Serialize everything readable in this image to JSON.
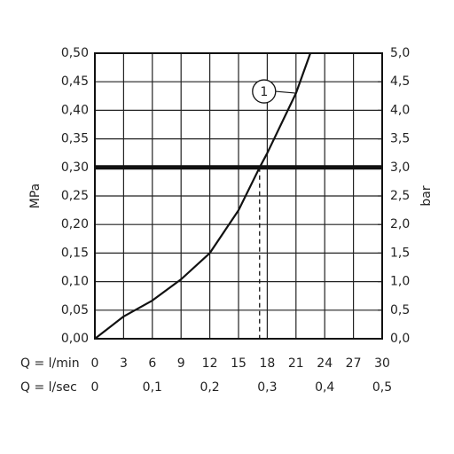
{
  "chart_data": {
    "type": "line",
    "y_label": "MPa",
    "y2_label": "bar",
    "x_label": "Q = l/min",
    "x2_label": "Q = l/sec",
    "grid": true,
    "x": [
      0,
      3,
      6,
      9,
      12,
      15,
      17.2,
      18,
      21,
      22.5
    ],
    "series": [
      {
        "color": "#111111",
        "values": [
          0,
          0.039,
          0.067,
          0.104,
          0.15,
          0.225,
          0.3,
          0.325,
          0.43,
          0.5
        ]
      }
    ],
    "xlim": [
      0,
      30
    ],
    "xticks": [
      0,
      3,
      6,
      9,
      12,
      15,
      18,
      21,
      24,
      27,
      30
    ],
    "x2lim": [
      0,
      0.5
    ],
    "x2ticks": [
      0,
      {
        "value": 0.1,
        "label": "0,1"
      },
      {
        "value": 0.2,
        "label": "0,2"
      },
      {
        "value": 0.3,
        "label": "0,3"
      },
      {
        "value": 0.4,
        "label": "0,4"
      },
      {
        "value": 0.5,
        "label": "0,5"
      }
    ],
    "ylim": [
      0,
      0.5
    ],
    "yticks": [
      {
        "value": 0,
        "label": "0,00"
      },
      {
        "value": 0.05,
        "label": "0,05"
      },
      {
        "value": 0.1,
        "label": "0,10"
      },
      {
        "value": 0.15,
        "label": "0,15"
      },
      {
        "value": 0.2,
        "label": "0,20"
      },
      {
        "value": 0.25,
        "label": "0,25"
      },
      {
        "value": 0.3,
        "label": "0,30"
      },
      {
        "value": 0.35,
        "label": "0,35"
      },
      {
        "value": 0.4,
        "label": "0,40"
      },
      {
        "value": 0.45,
        "label": "0,45"
      },
      {
        "value": 0.5,
        "label": "0,50"
      }
    ],
    "y2lim": [
      0,
      5
    ],
    "y2ticks": [
      {
        "value": 0,
        "label": "0,0"
      },
      {
        "value": 0.5,
        "label": "0,5"
      },
      {
        "value": 1,
        "label": "1,0"
      },
      {
        "value": 1.5,
        "label": "1,5"
      },
      {
        "value": 2,
        "label": "2,0"
      },
      {
        "value": 2.5,
        "label": "2,5"
      },
      {
        "value": 3,
        "label": "3,0"
      },
      {
        "value": 3.5,
        "label": "3,5"
      },
      {
        "value": 4,
        "label": "4,0"
      },
      {
        "value": 4.5,
        "label": "4,5"
      },
      {
        "value": 5,
        "label": "5,0"
      }
    ],
    "reference_y": 0.3,
    "operating_x": 17.2,
    "annotation": {
      "label": "1",
      "x": 21,
      "y": 0.43
    }
  }
}
